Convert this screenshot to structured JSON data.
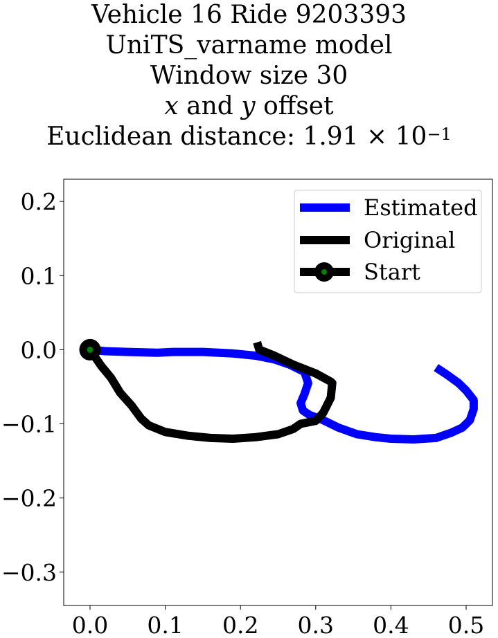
{
  "chart_data": {
    "type": "line",
    "title": {
      "line1": "Vehicle 16 Ride 9203393",
      "line2": "UniTS_varname model",
      "line3": "Window size 30",
      "line4_x": "x",
      "line4_and": " and ",
      "line4_y": "y",
      "line4_rest": " offset",
      "line5_prefix": "Euclidean distance: 1.91 × 10",
      "line5_exp": "−1"
    },
    "xlim": [
      -0.035,
      0.535
    ],
    "ylim": [
      -0.345,
      0.23
    ],
    "xticks": [
      0.0,
      0.1,
      0.2,
      0.3,
      0.4,
      0.5
    ],
    "xtick_labels": [
      "0.0",
      "0.1",
      "0.2",
      "0.3",
      "0.4",
      "0.5"
    ],
    "yticks": [
      0.2,
      0.1,
      0.0,
      -0.1,
      -0.2,
      -0.3
    ],
    "ytick_labels": [
      "0.2",
      "0.1",
      "0.0",
      "−0.1",
      "−0.2",
      "−0.3"
    ],
    "grid": false,
    "legend_position": "upper right",
    "series": [
      {
        "name": "Estimated",
        "color": "#0000ff",
        "x": [
          0.0,
          0.02,
          0.05,
          0.09,
          0.11,
          0.15,
          0.19,
          0.22,
          0.245,
          0.265,
          0.285,
          0.29,
          0.285,
          0.28,
          0.283,
          0.292,
          0.31,
          0.33,
          0.355,
          0.38,
          0.4,
          0.43,
          0.46,
          0.48,
          0.495,
          0.505,
          0.51,
          0.51,
          0.5,
          0.49,
          0.475,
          0.46
        ],
        "y": [
          0.0,
          -0.002,
          -0.003,
          -0.004,
          -0.003,
          -0.003,
          -0.005,
          -0.008,
          -0.013,
          -0.02,
          -0.03,
          -0.045,
          -0.06,
          -0.072,
          -0.082,
          -0.088,
          -0.095,
          -0.105,
          -0.114,
          -0.118,
          -0.12,
          -0.121,
          -0.119,
          -0.112,
          -0.105,
          -0.095,
          -0.08,
          -0.068,
          -0.055,
          -0.045,
          -0.034,
          -0.024
        ]
      },
      {
        "name": "Original",
        "color": "#000000",
        "x": [
          0.0,
          0.015,
          0.028,
          0.04,
          0.055,
          0.068,
          0.078,
          0.1,
          0.13,
          0.16,
          0.19,
          0.22,
          0.25,
          0.27,
          0.28,
          0.3,
          0.31,
          0.32,
          0.322,
          0.32,
          0.3,
          0.27,
          0.245,
          0.23,
          0.225,
          0.222
        ],
        "y": [
          0.0,
          -0.022,
          -0.038,
          -0.058,
          -0.075,
          -0.093,
          -0.102,
          -0.111,
          -0.116,
          -0.119,
          -0.12,
          -0.118,
          -0.114,
          -0.107,
          -0.1,
          -0.096,
          -0.085,
          -0.065,
          -0.045,
          -0.043,
          -0.032,
          -0.02,
          -0.008,
          -0.002,
          0.0,
          0.01
        ]
      }
    ],
    "start_point": {
      "name": "Start",
      "x": 0.0,
      "y": 0.0,
      "edge_color": "#000000",
      "face_color": "#008000"
    }
  }
}
